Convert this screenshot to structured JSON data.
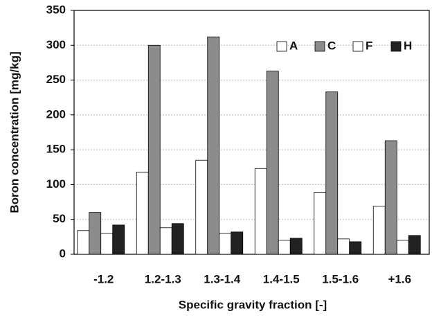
{
  "chart_data": {
    "type": "bar",
    "x_label": "Specific gravity fraction [-]",
    "y_label": "Boron concentration [mg/kg]",
    "categories": [
      "-1.2",
      "1.2-1.3",
      "1.3-1.4",
      "1.4-1.5",
      "1.5-1.6",
      "+1.6"
    ],
    "series": [
      {
        "name": "A",
        "color": "#ffffff",
        "values": [
          34,
          118,
          135,
          123,
          89,
          69
        ]
      },
      {
        "name": "C",
        "color": "#8c8c8c",
        "values": [
          60,
          300,
          312,
          263,
          233,
          163
        ]
      },
      {
        "name": "F",
        "color": "#ffffff",
        "values": [
          30,
          38,
          30,
          20,
          22,
          20
        ]
      },
      {
        "name": "H",
        "color": "#222222",
        "values": [
          42,
          44,
          32,
          23,
          18,
          27
        ]
      }
    ],
    "ylim": [
      0,
      350
    ],
    "yticks": [
      0,
      50,
      100,
      150,
      200,
      250,
      300,
      350
    ],
    "grid": true,
    "legend": "top-right"
  }
}
